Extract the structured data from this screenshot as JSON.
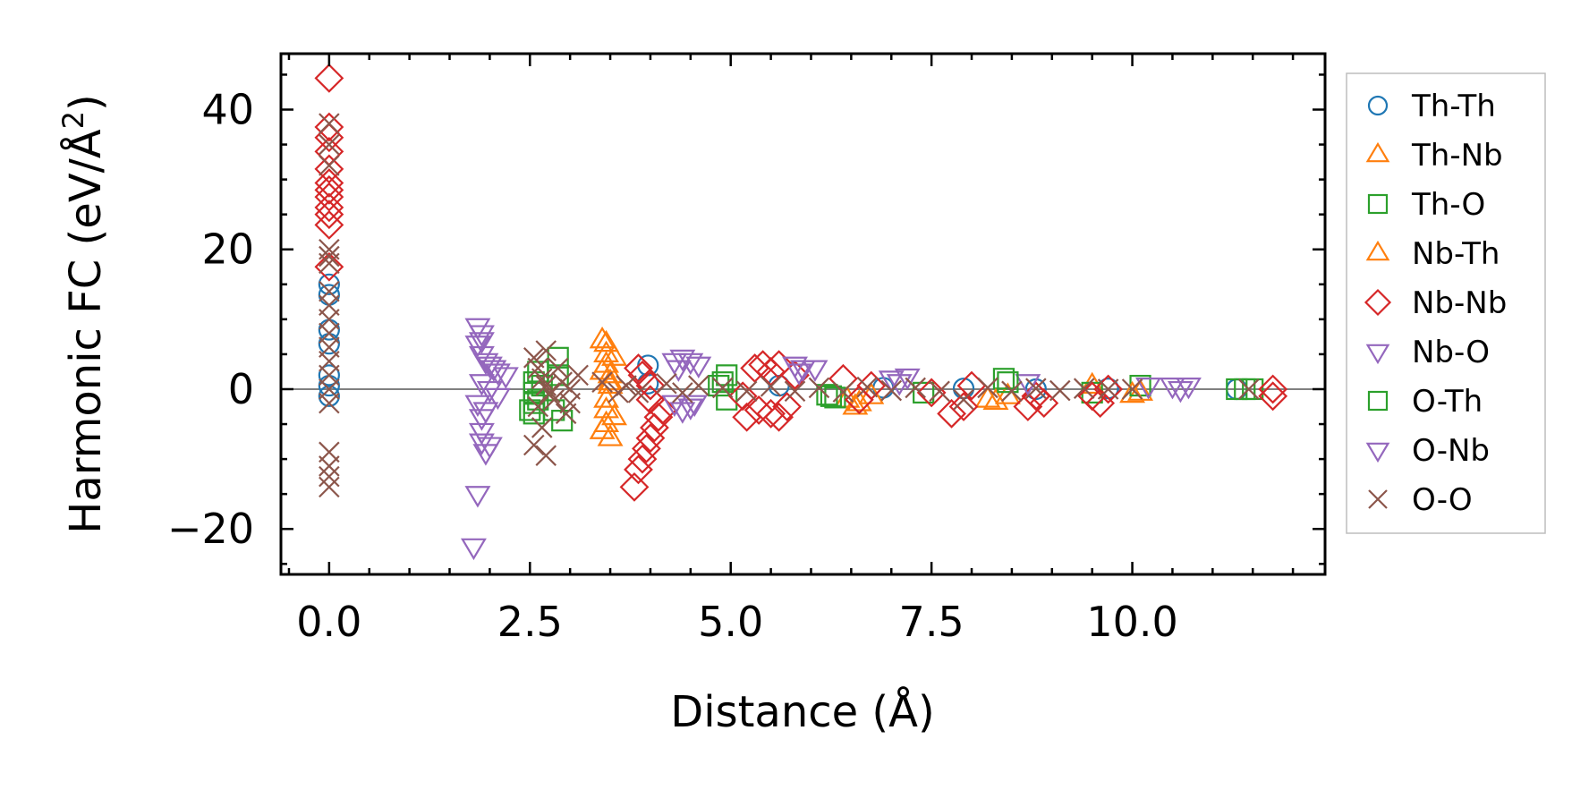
{
  "chart_data": {
    "type": "scatter",
    "title": "",
    "xlabel": "Distance (Å)",
    "ylabel_main": "Harmonic FC (eV/Å",
    "ylabel_sup": "2",
    "ylabel_close": ")",
    "xlim": [
      -0.6,
      12.4
    ],
    "ylim": [
      -26.5,
      48
    ],
    "xticks": [
      0.0,
      2.5,
      5.0,
      7.5,
      10.0
    ],
    "xtick_labels": [
      "0.0",
      "2.5",
      "5.0",
      "7.5",
      "10.0"
    ],
    "yticks": [
      -20,
      0,
      20,
      40
    ],
    "ytick_labels": [
      "−20",
      "0",
      "20",
      "40"
    ],
    "zero_line": true,
    "grid": false,
    "legend_position": "outside-right",
    "series": [
      {
        "name": "Th-Th",
        "marker": "circle",
        "color": "#1f77b4",
        "points": [
          [
            0.0,
            15.0
          ],
          [
            0.0,
            13.5
          ],
          [
            0.0,
            8.5
          ],
          [
            0.0,
            6.5
          ],
          [
            0.0,
            2.0
          ],
          [
            0.0,
            0.5
          ],
          [
            0.0,
            -1.0
          ],
          [
            3.97,
            3.4
          ],
          [
            3.97,
            0.8
          ],
          [
            5.6,
            0.5
          ],
          [
            6.9,
            0.2
          ],
          [
            7.9,
            0.1
          ],
          [
            8.8,
            0.0
          ],
          [
            9.7,
            0.1
          ],
          [
            11.3,
            0.0
          ]
        ]
      },
      {
        "name": "Th-Nb",
        "marker": "triangle-up",
        "color": "#ff7f0e",
        "points": [
          [
            3.45,
            6.5
          ],
          [
            3.45,
            5.0
          ],
          [
            3.45,
            3.5
          ],
          [
            3.5,
            2.0
          ],
          [
            3.5,
            1.0
          ],
          [
            3.45,
            -1.5
          ],
          [
            3.45,
            -3.0
          ],
          [
            3.45,
            -5.0
          ],
          [
            3.5,
            -7.0
          ],
          [
            3.55,
            4.5
          ],
          [
            3.55,
            -4.0
          ],
          [
            6.45,
            -1.5
          ],
          [
            6.6,
            -2.0
          ],
          [
            6.75,
            -1.0
          ],
          [
            8.2,
            -1.5
          ],
          [
            8.45,
            -1.0
          ],
          [
            9.5,
            0.5
          ],
          [
            10.1,
            -0.5
          ]
        ]
      },
      {
        "name": "Th-O",
        "marker": "square",
        "color": "#2ca02c",
        "points": [
          [
            2.55,
            1.0
          ],
          [
            2.55,
            -0.5
          ],
          [
            2.55,
            -2.0
          ],
          [
            2.55,
            -3.5
          ],
          [
            2.6,
            -1.5
          ],
          [
            2.65,
            0.5
          ],
          [
            2.85,
            4.5
          ],
          [
            2.85,
            2.0
          ],
          [
            2.8,
            -3.0
          ],
          [
            4.95,
            2.0
          ],
          [
            4.95,
            -1.5
          ],
          [
            4.85,
            0.5
          ],
          [
            6.2,
            -0.8
          ],
          [
            6.3,
            -1.2
          ],
          [
            7.4,
            -0.5
          ],
          [
            8.4,
            1.5
          ],
          [
            9.5,
            -0.5
          ],
          [
            10.1,
            0.5
          ],
          [
            11.3,
            0.0
          ],
          [
            11.5,
            0.0
          ]
        ]
      },
      {
        "name": "Nb-Th",
        "marker": "triangle-up",
        "color": "#ff7f0e",
        "points": [
          [
            3.4,
            7.0
          ],
          [
            3.4,
            2.5
          ],
          [
            3.4,
            -6.0
          ],
          [
            3.5,
            0.5
          ],
          [
            6.55,
            -2.5
          ],
          [
            8.3,
            -1.8
          ],
          [
            10.0,
            -0.8
          ]
        ]
      },
      {
        "name": "Nb-Nb",
        "marker": "diamond",
        "color": "#d62728",
        "points": [
          [
            0.0,
            44.5
          ],
          [
            0.0,
            37.5
          ],
          [
            0.0,
            36.0
          ],
          [
            0.0,
            34.0
          ],
          [
            0.0,
            31.5
          ],
          [
            0.0,
            29.5
          ],
          [
            0.0,
            28.5
          ],
          [
            0.0,
            27.5
          ],
          [
            0.0,
            26.0
          ],
          [
            0.0,
            25.0
          ],
          [
            0.0,
            23.5
          ],
          [
            0.0,
            17.5
          ],
          [
            3.8,
            -14.0
          ],
          [
            3.85,
            -11.5
          ],
          [
            3.9,
            -10.0
          ],
          [
            3.95,
            -8.5
          ],
          [
            4.0,
            -7.0
          ],
          [
            4.05,
            -5.5
          ],
          [
            4.1,
            -4.0
          ],
          [
            4.15,
            -3.0
          ],
          [
            4.0,
            -1.5
          ],
          [
            3.85,
            3.0
          ],
          [
            3.9,
            2.0
          ],
          [
            4.0,
            0.5
          ],
          [
            5.2,
            -4.0
          ],
          [
            5.35,
            -3.0
          ],
          [
            5.5,
            -3.5
          ],
          [
            5.6,
            -4.0
          ],
          [
            5.7,
            -2.5
          ],
          [
            5.3,
            3.0
          ],
          [
            5.4,
            3.5
          ],
          [
            5.5,
            2.5
          ],
          [
            5.6,
            3.5
          ],
          [
            5.8,
            2.0
          ],
          [
            5.15,
            -1.0
          ],
          [
            6.4,
            1.5
          ],
          [
            6.6,
            -1.5
          ],
          [
            6.75,
            0.5
          ],
          [
            7.5,
            -0.5
          ],
          [
            7.75,
            -3.5
          ],
          [
            7.9,
            -2.5
          ],
          [
            8.0,
            0.5
          ],
          [
            8.7,
            -2.5
          ],
          [
            8.8,
            -1.0
          ],
          [
            8.9,
            -2.0
          ],
          [
            9.5,
            -1.0
          ],
          [
            9.6,
            -2.0
          ],
          [
            9.7,
            0.0
          ],
          [
            11.75,
            0.0
          ],
          [
            11.75,
            -1.0
          ]
        ]
      },
      {
        "name": "Nb-O",
        "marker": "triangle-down",
        "color": "#9467bd",
        "points": [
          [
            1.85,
            9.0
          ],
          [
            1.9,
            8.0
          ],
          [
            1.85,
            6.5
          ],
          [
            1.9,
            5.0
          ],
          [
            1.95,
            4.0
          ],
          [
            2.0,
            3.5
          ],
          [
            2.05,
            3.0
          ],
          [
            2.1,
            2.5
          ],
          [
            2.2,
            2.0
          ],
          [
            1.9,
            1.0
          ],
          [
            2.0,
            0.0
          ],
          [
            2.1,
            -1.0
          ],
          [
            1.85,
            -2.0
          ],
          [
            1.9,
            -4.0
          ],
          [
            1.9,
            -6.0
          ],
          [
            1.9,
            -7.5
          ],
          [
            1.95,
            -9.0
          ],
          [
            1.85,
            -15.0
          ],
          [
            1.8,
            -22.5
          ],
          [
            4.3,
            4.0
          ],
          [
            4.4,
            4.5
          ],
          [
            4.5,
            4.0
          ],
          [
            4.6,
            3.5
          ],
          [
            4.3,
            -2.0
          ],
          [
            4.4,
            -3.0
          ],
          [
            4.5,
            -2.5
          ],
          [
            5.8,
            3.5
          ],
          [
            5.9,
            3.0
          ],
          [
            6.05,
            3.0
          ],
          [
            7.0,
            1.5
          ],
          [
            7.2,
            1.8
          ],
          [
            8.7,
            1.0
          ],
          [
            10.2,
            0.5
          ],
          [
            10.5,
            0.5
          ],
          [
            10.7,
            0.5
          ]
        ]
      },
      {
        "name": "O-Th",
        "marker": "square",
        "color": "#2ca02c",
        "points": [
          [
            2.5,
            -3.0
          ],
          [
            2.6,
            2.5
          ],
          [
            2.9,
            -4.5
          ],
          [
            4.9,
            1.0
          ],
          [
            6.25,
            -1.0
          ],
          [
            8.45,
            1.0
          ],
          [
            11.4,
            0.0
          ]
        ]
      },
      {
        "name": "O-Nb",
        "marker": "triangle-down",
        "color": "#9467bd",
        "points": [
          [
            1.9,
            7.0
          ],
          [
            1.95,
            -3.0
          ],
          [
            2.0,
            -8.0
          ],
          [
            4.35,
            3.0
          ],
          [
            4.55,
            -2.0
          ],
          [
            5.85,
            2.5
          ],
          [
            7.1,
            1.0
          ],
          [
            10.6,
            0.0
          ]
        ]
      },
      {
        "name": "O-O",
        "marker": "x",
        "color": "#8c564b",
        "points": [
          [
            0.0,
            38.0
          ],
          [
            0.0,
            35.0
          ],
          [
            0.0,
            32.0
          ],
          [
            0.0,
            20.0
          ],
          [
            0.0,
            19.0
          ],
          [
            0.0,
            18.0
          ],
          [
            0.0,
            14.0
          ],
          [
            0.0,
            12.0
          ],
          [
            0.0,
            10.0
          ],
          [
            0.0,
            8.0
          ],
          [
            0.0,
            6.0
          ],
          [
            0.0,
            4.0
          ],
          [
            0.0,
            2.0
          ],
          [
            0.0,
            0.0
          ],
          [
            0.0,
            -2.0
          ],
          [
            0.0,
            -9.0
          ],
          [
            0.0,
            -11.0
          ],
          [
            0.0,
            -12.5
          ],
          [
            0.0,
            -14.0
          ],
          [
            2.55,
            4.5
          ],
          [
            2.6,
            3.0
          ],
          [
            2.65,
            1.5
          ],
          [
            2.7,
            0.5
          ],
          [
            2.75,
            -0.5
          ],
          [
            2.8,
            -1.5
          ],
          [
            2.6,
            -2.5
          ],
          [
            2.65,
            -5.5
          ],
          [
            2.55,
            -8.0
          ],
          [
            2.7,
            -9.5
          ],
          [
            2.7,
            5.5
          ],
          [
            2.85,
            3.0
          ],
          [
            2.9,
            1.0
          ],
          [
            3.0,
            0.0
          ],
          [
            3.1,
            2.0
          ],
          [
            3.0,
            -2.0
          ],
          [
            2.95,
            -3.5
          ],
          [
            3.4,
            1.0
          ],
          [
            3.6,
            -0.5
          ],
          [
            3.7,
            0.5
          ],
          [
            3.85,
            -0.5
          ],
          [
            4.2,
            0.8
          ],
          [
            4.4,
            -0.5
          ],
          [
            4.6,
            0.5
          ],
          [
            4.9,
            0.2
          ],
          [
            5.2,
            -0.3
          ],
          [
            5.5,
            0.4
          ],
          [
            5.8,
            -0.3
          ],
          [
            6.1,
            0.2
          ],
          [
            6.4,
            -0.4
          ],
          [
            6.7,
            0.3
          ],
          [
            7.0,
            -0.2
          ],
          [
            7.3,
            0.2
          ],
          [
            7.6,
            -0.3
          ],
          [
            7.9,
            -1.5
          ],
          [
            8.2,
            0.2
          ],
          [
            8.5,
            -0.3
          ],
          [
            8.8,
            0.1
          ],
          [
            9.1,
            -0.2
          ],
          [
            9.4,
            0.1
          ],
          [
            9.7,
            0.0
          ],
          [
            10.0,
            0.0
          ],
          [
            11.45,
            0.0
          ]
        ]
      }
    ],
    "legend": [
      "Th-Th",
      "Th-Nb",
      "Th-O",
      "Nb-Th",
      "Nb-Nb",
      "Nb-O",
      "O-Th",
      "O-Nb",
      "O-O"
    ]
  }
}
